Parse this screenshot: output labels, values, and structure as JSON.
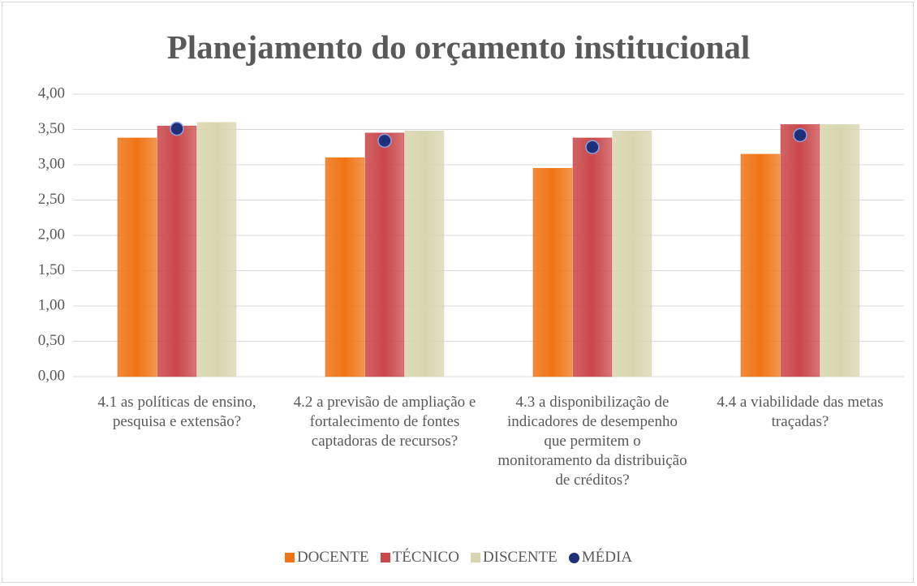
{
  "chart_data": {
    "type": "bar",
    "title": "Planejamento do orçamento institucional",
    "categories": [
      "4.1 as políticas de ensino, pesquisa e extensão?",
      "4.2 a previsão de ampliação e fortalecimento de fontes captadoras de recursos?",
      "4.3 a disponibilização de indicadores de desempenho que permitem o monitoramento da distribuição de créditos?",
      "4.4 a viabilidade das metas traçadas?"
    ],
    "series": [
      {
        "name": "DOCENTE",
        "color": "#f07414",
        "values": [
          3.38,
          3.1,
          2.95,
          3.15
        ]
      },
      {
        "name": "TÉCNICO",
        "color": "#c9484b",
        "values": [
          3.55,
          3.45,
          3.38,
          3.57
        ]
      },
      {
        "name": "DISCENTE",
        "color": "#d9d5b0",
        "values": [
          3.6,
          3.48,
          3.48,
          3.57
        ]
      },
      {
        "name": "MÉDIA",
        "color": "#1f2f7a",
        "type": "marker",
        "values": [
          3.51,
          3.34,
          3.25,
          3.42
        ]
      }
    ],
    "ylim": [
      0,
      4
    ],
    "yticks": [
      {
        "value": 0,
        "label": "0,00"
      },
      {
        "value": 0.5,
        "label": "0,50"
      },
      {
        "value": 1,
        "label": "1,00"
      },
      {
        "value": 1.5,
        "label": "1,50"
      },
      {
        "value": 2,
        "label": "2,00"
      },
      {
        "value": 2.5,
        "label": "2,50"
      },
      {
        "value": 3,
        "label": "3,00"
      },
      {
        "value": 3.5,
        "label": "3,50"
      },
      {
        "value": 4,
        "label": "4,00"
      }
    ],
    "grid": true,
    "legend": "bottom"
  }
}
